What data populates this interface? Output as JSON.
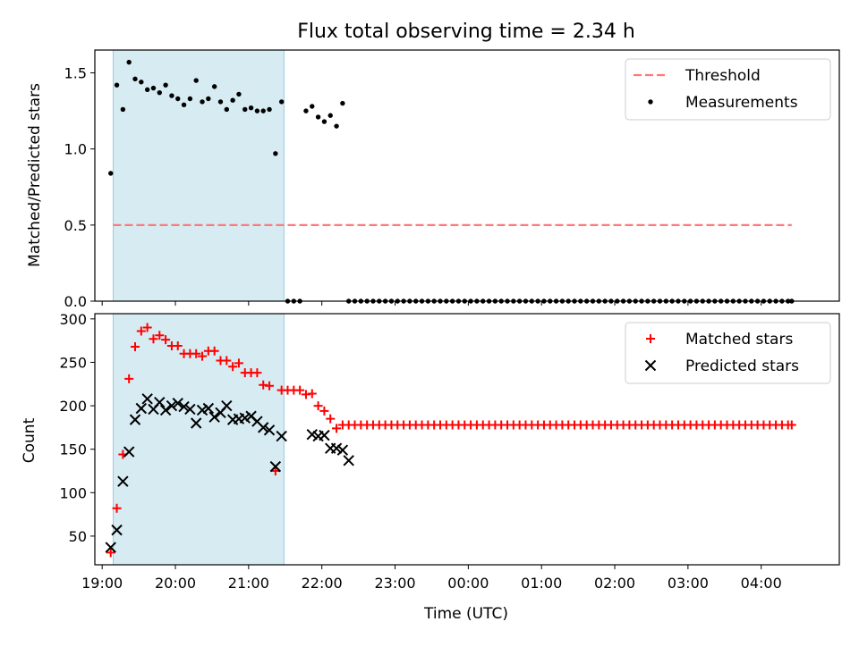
{
  "title": "Flux total observing time = 2.34 h",
  "colors": {
    "threshold": "#ff7777",
    "matched": "#ff0000",
    "predicted": "#000000",
    "measurement": "#000000",
    "span": "#add8e6"
  },
  "chart_data": [
    {
      "type": "scatter",
      "panel": "top",
      "ylabel": "Matched/Predicted stars",
      "ylim": [
        0,
        1.65
      ],
      "xlim": [
        "18:54",
        "05:04"
      ],
      "yticks": [
        "0.0",
        "0.5",
        "1.0",
        "1.5"
      ],
      "shaded_span": [
        "19:09",
        "21:29"
      ],
      "legend": {
        "position": "top-right",
        "entries": [
          "Threshold",
          "Measurements"
        ]
      },
      "threshold": {
        "name": "Threshold",
        "y": 0.5,
        "x": [
          "19:09",
          "04:25"
        ]
      },
      "series": [
        {
          "name": "Measurements",
          "x": [
            "19:07",
            "19:12",
            "19:17",
            "19:22",
            "19:27",
            "19:32",
            "19:37",
            "19:42",
            "19:47",
            "19:52",
            "19:57",
            "20:02",
            "20:07",
            "20:12",
            "20:17",
            "20:22",
            "20:27",
            "20:32",
            "20:37",
            "20:42",
            "20:47",
            "20:52",
            "20:57",
            "21:02",
            "21:07",
            "21:12",
            "21:17",
            "21:22",
            "21:27",
            "21:32",
            "21:37",
            "21:42",
            "21:47",
            "21:52",
            "21:57",
            "22:02",
            "22:07",
            "22:12",
            "22:17",
            "22:22",
            "22:27",
            "22:32",
            "22:37",
            "22:42",
            "22:47",
            "22:52",
            "22:57",
            "23:02",
            "23:07",
            "23:12",
            "23:17",
            "23:22",
            "23:27",
            "23:32",
            "23:37",
            "23:42",
            "23:47",
            "23:52",
            "23:57",
            "00:02",
            "00:07",
            "00:12",
            "00:17",
            "00:22",
            "00:27",
            "00:32",
            "00:37",
            "00:42",
            "00:47",
            "00:52",
            "00:57",
            "01:02",
            "01:07",
            "01:12",
            "01:17",
            "01:22",
            "01:27",
            "01:32",
            "01:37",
            "01:42",
            "01:47",
            "01:52",
            "01:57",
            "02:02",
            "02:07",
            "02:12",
            "02:17",
            "02:22",
            "02:27",
            "02:32",
            "02:37",
            "02:42",
            "02:47",
            "02:52",
            "02:57",
            "03:02",
            "03:07",
            "03:12",
            "03:17",
            "03:22",
            "03:27",
            "03:32",
            "03:37",
            "03:42",
            "03:47",
            "03:52",
            "03:57",
            "04:02",
            "04:07",
            "04:12",
            "04:17",
            "04:22",
            "04:25"
          ],
          "y": [
            0.84,
            1.42,
            1.26,
            1.57,
            1.46,
            1.44,
            1.39,
            1.4,
            1.37,
            1.42,
            1.35,
            1.33,
            1.29,
            1.33,
            1.45,
            1.31,
            1.33,
            1.41,
            1.31,
            1.26,
            1.32,
            1.36,
            1.26,
            1.27,
            1.25,
            1.25,
            1.26,
            0.97,
            1.31,
            0,
            0,
            0,
            1.25,
            1.28,
            1.21,
            1.18,
            1.22,
            1.15,
            1.3,
            0,
            0,
            0,
            0,
            0,
            0,
            0,
            0,
            0,
            0,
            0,
            0,
            0,
            0,
            0,
            0,
            0,
            0,
            0,
            0,
            0,
            0,
            0,
            0,
            0,
            0,
            0,
            0,
            0,
            0,
            0,
            0,
            0,
            0,
            0,
            0,
            0,
            0,
            0,
            0,
            0,
            0,
            0,
            0,
            0,
            0,
            0,
            0,
            0,
            0,
            0,
            0,
            0,
            0,
            0,
            0,
            0,
            0,
            0,
            0,
            0,
            0,
            0,
            0,
            0,
            0,
            0,
            0,
            0,
            0,
            0,
            0,
            0,
            0
          ]
        }
      ]
    },
    {
      "type": "scatter",
      "panel": "bottom",
      "xlabel": "Time (UTC)",
      "ylabel": "Count",
      "ylim": [
        17,
        306
      ],
      "xlim": [
        "18:54",
        "05:04"
      ],
      "yticks": [
        "50",
        "100",
        "150",
        "200",
        "250",
        "300"
      ],
      "xticks": [
        "19:00",
        "20:00",
        "21:00",
        "22:00",
        "23:00",
        "00:00",
        "01:00",
        "02:00",
        "03:00",
        "04:00"
      ],
      "shaded_span": [
        "19:09",
        "21:29"
      ],
      "legend": {
        "position": "top-right",
        "entries": [
          "Matched stars",
          "Predicted stars"
        ]
      },
      "series": [
        {
          "name": "Matched stars",
          "marker": "plus",
          "x": [
            "19:07",
            "19:12",
            "19:17",
            "19:22",
            "19:27",
            "19:32",
            "19:37",
            "19:42",
            "19:47",
            "19:52",
            "19:57",
            "20:02",
            "20:07",
            "20:12",
            "20:17",
            "20:22",
            "20:27",
            "20:32",
            "20:37",
            "20:42",
            "20:47",
            "20:52",
            "20:57",
            "21:02",
            "21:07",
            "21:12",
            "21:17",
            "21:22",
            "21:27",
            "21:32",
            "21:37",
            "21:42",
            "21:47",
            "21:52",
            "21:57",
            "22:02",
            "22:07",
            "22:12",
            "22:17",
            "22:22",
            "22:27",
            "22:32",
            "22:37",
            "22:42",
            "22:47",
            "22:52",
            "22:57",
            "23:02",
            "23:07",
            "23:12",
            "23:17",
            "23:22",
            "23:27",
            "23:32",
            "23:37",
            "23:42",
            "23:47",
            "23:52",
            "23:57",
            "00:02",
            "00:07",
            "00:12",
            "00:17",
            "00:22",
            "00:27",
            "00:32",
            "00:37",
            "00:42",
            "00:47",
            "00:52",
            "00:57",
            "01:02",
            "01:07",
            "01:12",
            "01:17",
            "01:22",
            "01:27",
            "01:32",
            "01:37",
            "01:42",
            "01:47",
            "01:52",
            "01:57",
            "02:02",
            "02:07",
            "02:12",
            "02:17",
            "02:22",
            "02:27",
            "02:32",
            "02:37",
            "02:42",
            "02:47",
            "02:52",
            "02:57",
            "03:02",
            "03:07",
            "03:12",
            "03:17",
            "03:22",
            "03:27",
            "03:32",
            "03:37",
            "03:42",
            "03:47",
            "03:52",
            "03:57",
            "04:02",
            "04:07",
            "04:12",
            "04:17",
            "04:22",
            "04:25"
          ],
          "y": [
            31,
            82,
            144,
            231,
            268,
            286,
            290,
            277,
            281,
            276,
            269,
            269,
            260,
            260,
            260,
            257,
            263,
            263,
            252,
            252,
            245,
            249,
            238,
            238,
            238,
            224,
            223,
            125,
            218,
            218,
            218,
            218,
            213,
            214,
            200,
            194,
            185,
            174,
            178,
            178,
            178,
            178,
            178,
            178,
            178,
            178,
            178,
            178,
            178,
            178,
            178,
            178,
            178,
            178,
            178,
            178,
            178,
            178,
            178,
            178,
            178,
            178,
            178,
            178,
            178,
            178,
            178,
            178,
            178,
            178,
            178,
            178,
            178,
            178,
            178,
            178,
            178,
            178,
            178,
            178,
            178,
            178,
            178,
            178,
            178,
            178,
            178,
            178,
            178,
            178,
            178,
            178,
            178,
            178,
            178,
            178,
            178,
            178,
            178,
            178,
            178,
            178,
            178,
            178,
            178,
            178,
            178,
            178,
            178,
            178,
            178,
            178,
            178
          ]
        },
        {
          "name": "Predicted stars",
          "marker": "x",
          "x": [
            "19:07",
            "19:12",
            "19:17",
            "19:22",
            "19:27",
            "19:32",
            "19:37",
            "19:42",
            "19:47",
            "19:52",
            "19:57",
            "20:02",
            "20:07",
            "20:12",
            "20:17",
            "20:22",
            "20:27",
            "20:32",
            "20:37",
            "20:42",
            "20:47",
            "20:52",
            "20:57",
            "21:02",
            "21:07",
            "21:12",
            "21:17",
            "21:22",
            "21:27",
            "21:52",
            "21:57",
            "22:02",
            "22:07",
            "22:12",
            "22:17",
            "22:22"
          ],
          "y": [
            37,
            57,
            113,
            147,
            184,
            197,
            208,
            196,
            204,
            195,
            200,
            203,
            199,
            196,
            180,
            195,
            197,
            187,
            192,
            200,
            184,
            185,
            186,
            188,
            182,
            175,
            172,
            130,
            165,
            167,
            165,
            166,
            151,
            151,
            149,
            137
          ]
        }
      ]
    }
  ]
}
